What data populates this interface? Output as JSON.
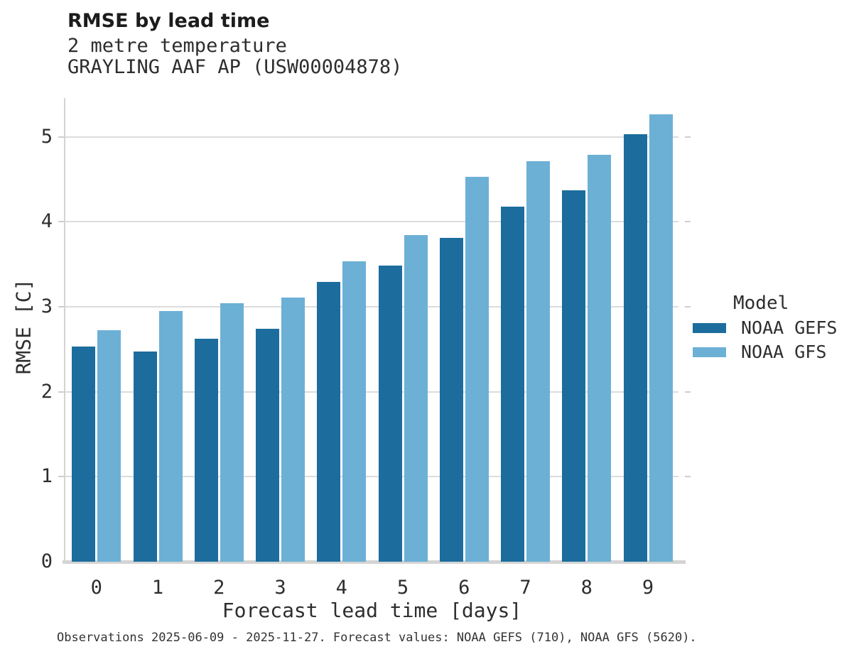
{
  "header": {
    "title": "RMSE by lead time",
    "subtitle1": "2 metre temperature",
    "subtitle2": "GRAYLING AAF AP (USW00004878)"
  },
  "chart_data": {
    "type": "bar",
    "title": "RMSE by lead time",
    "subtitle": [
      "2 metre temperature",
      "GRAYLING AAF AP (USW00004878)"
    ],
    "categories": [
      "0",
      "1",
      "2",
      "3",
      "4",
      "5",
      "6",
      "7",
      "8",
      "9"
    ],
    "series": [
      {
        "name": "NOAA GEFS",
        "color": "#1c6d9d",
        "values": [
          2.53,
          2.47,
          2.62,
          2.74,
          3.29,
          3.48,
          3.81,
          4.18,
          4.37,
          5.03
        ]
      },
      {
        "name": "NOAA GFS",
        "color": "#6cb0d6",
        "values": [
          2.72,
          2.95,
          3.04,
          3.11,
          3.53,
          3.84,
          4.53,
          4.71,
          4.79,
          5.26
        ]
      }
    ],
    "xlabel": "Forecast lead time [days]",
    "ylabel": "RMSE [C]",
    "yticks": [
      0,
      1,
      2,
      3,
      4,
      5
    ],
    "ylim": [
      0,
      5.47
    ],
    "grid": "horizontal",
    "legend": {
      "title": "Model",
      "position": "right"
    }
  },
  "colors": {
    "gefs_bar": "#1c6d9d",
    "gfs_bar": "#6cb0d6",
    "gridline": "#dcdcdc",
    "spine": "#d4d4d4",
    "text": "#2e2e2e"
  },
  "caption": "Observations 2025-06-09 - 2025-11-27. Forecast values: NOAA GEFS (710), NOAA GFS (5620)."
}
